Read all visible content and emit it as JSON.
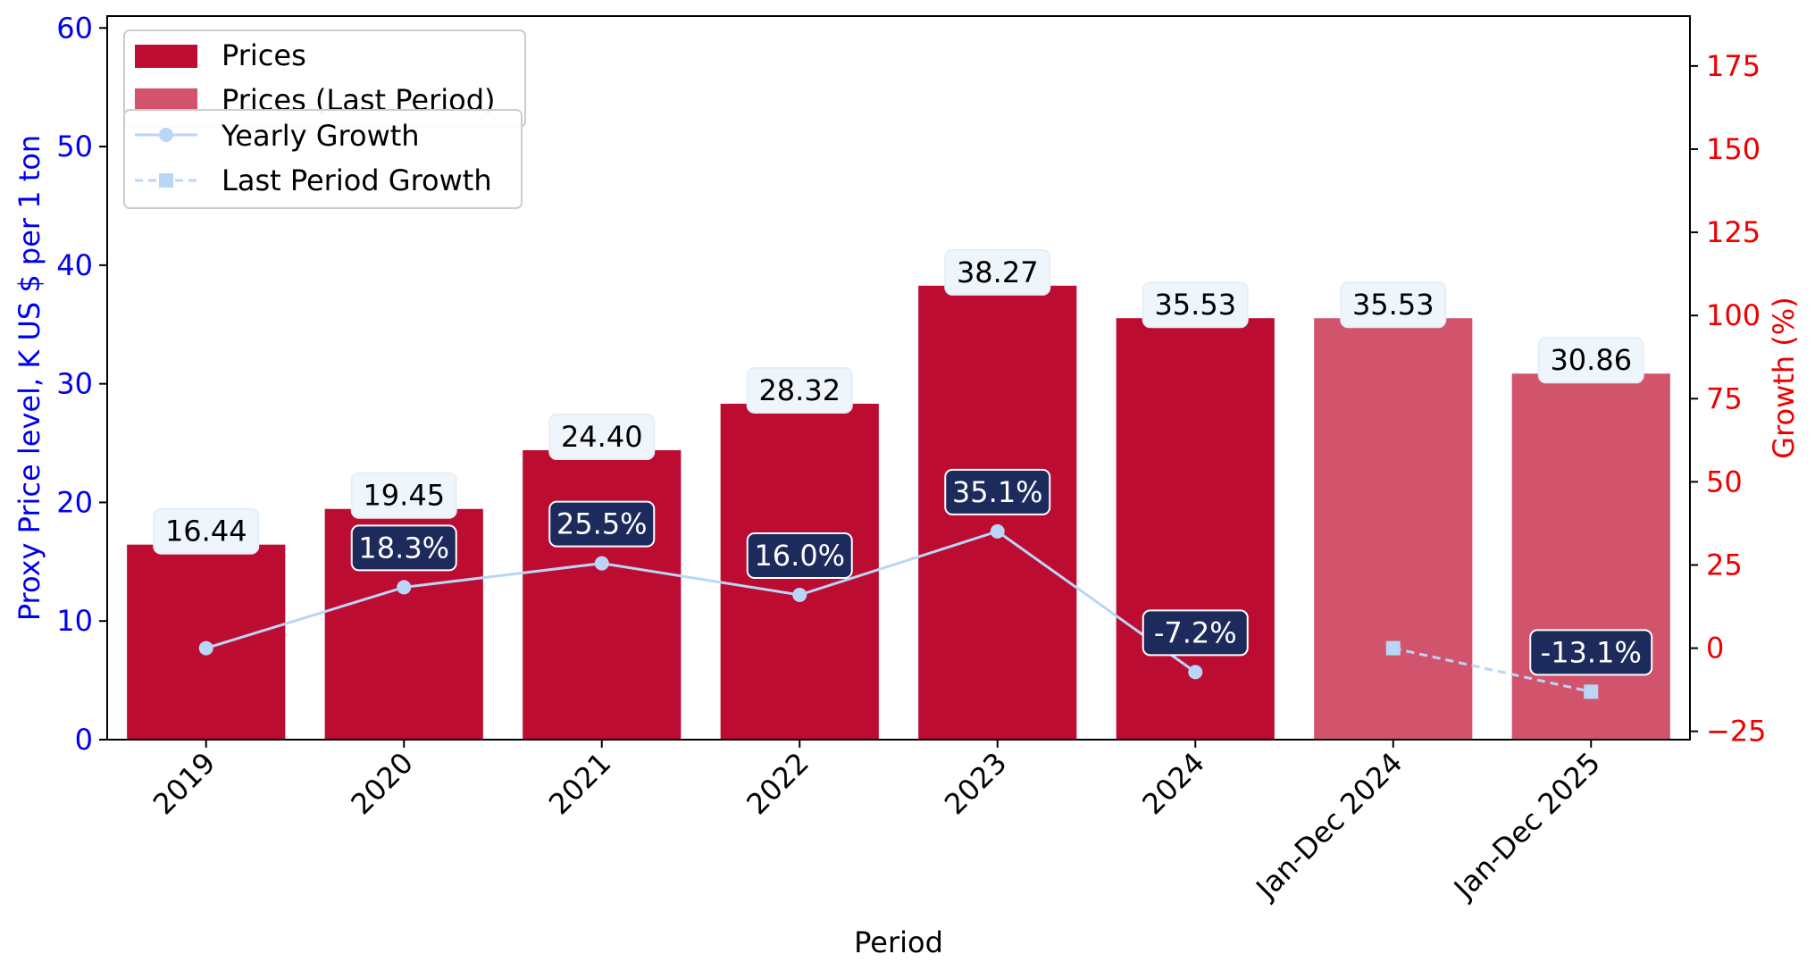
{
  "chart_data": {
    "type": "bar",
    "categories": [
      "2019",
      "2020",
      "2021",
      "2022",
      "2023",
      "2024",
      "Jan-Dec 2024",
      "Jan-Dec 2025"
    ],
    "xlabel": "Period",
    "ylabel": "Proxy Price level, K US $ per 1 ton",
    "y2label": "Growth (%)",
    "ylim": [
      0,
      61
    ],
    "y2lim": [
      -27.5,
      190
    ],
    "yticks": [
      "0",
      "10",
      "20",
      "30",
      "40",
      "50",
      "60"
    ],
    "y2ticks": [
      "−25",
      "0",
      "25",
      "50",
      "75",
      "100",
      "125",
      "150",
      "175"
    ],
    "grid": false,
    "legend_position": "top-left",
    "series": [
      {
        "name": "Prices",
        "kind": "bar",
        "color": "#bd0c32",
        "values": [
          16.44,
          19.45,
          24.4,
          28.32,
          38.27,
          35.53,
          null,
          null
        ],
        "labels": [
          "16.44",
          "19.45",
          "24.40",
          "28.32",
          "38.27",
          "35.53",
          "",
          ""
        ]
      },
      {
        "name": "Prices (Last Period)",
        "kind": "bar",
        "color": "#d1546c",
        "values": [
          null,
          null,
          null,
          null,
          null,
          null,
          35.53,
          30.86
        ],
        "labels": [
          "",
          "",
          "",
          "",
          "",
          "",
          "35.53",
          "30.86"
        ]
      },
      {
        "name": "Yearly Growth",
        "kind": "line",
        "axis": "right",
        "color": "#b9d6f7",
        "marker": "circle",
        "values": [
          0.0,
          18.3,
          25.5,
          16.0,
          35.1,
          -7.2,
          null,
          null
        ],
        "labels": [
          "",
          "18.3%",
          "25.5%",
          "16.0%",
          "35.1%",
          "-7.2%",
          "",
          ""
        ]
      },
      {
        "name": "Last Period Growth",
        "kind": "line",
        "axis": "right",
        "color": "#b9d6f7",
        "marker": "square",
        "dashed": true,
        "values": [
          null,
          null,
          null,
          null,
          null,
          null,
          0.0,
          -13.1
        ],
        "labels": [
          "",
          "",
          "",
          "",
          "",
          "",
          "",
          "-13.1%"
        ]
      }
    ],
    "colors": {
      "left_axis": "#0000ee",
      "right_axis": "#ee0000",
      "value_label_bg": "#eef5fb",
      "growth_label_bg": "#1d2a5c"
    }
  }
}
